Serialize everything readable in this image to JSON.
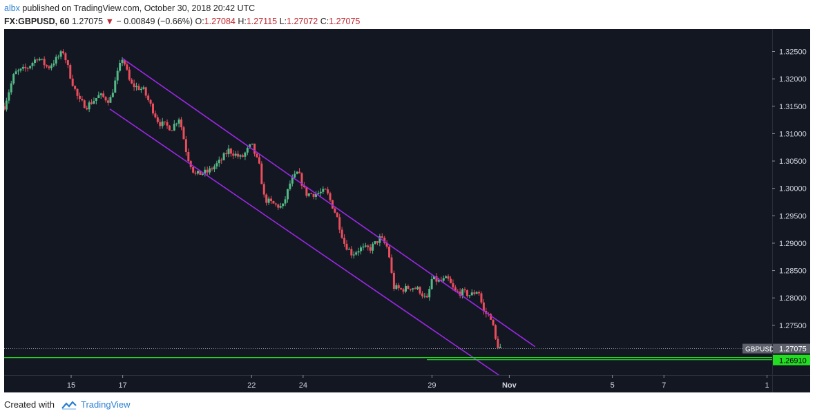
{
  "header": {
    "user": "albx",
    "published_text": "published on TradingView.com, October 30, 2018 20:42 UTC",
    "symbol": "FX:GBPUSD, 60",
    "last": "1.27075",
    "change": "− 0.00849 (−0.66%)",
    "o_label": "O:",
    "o_val": "1.27084",
    "h_label": "H:",
    "h_val": "1.27115",
    "l_label": "L:",
    "l_val": "1.27072",
    "c_label": "C:",
    "c_val": "1.27075"
  },
  "footer": {
    "created_with": "Created with",
    "brand": "TradingView"
  },
  "colors": {
    "background": "#131722",
    "up": "#53b987",
    "down": "#eb4d5c",
    "channel": "#9c27e6",
    "support": "#22dd22",
    "header_red": "#c0262d",
    "brand": "#2a7fd4"
  },
  "chart_data": {
    "type": "candlestick",
    "title": "FX:GBPUSD, 60",
    "ylim": [
      1.2659,
      1.3291
    ],
    "y_ticks": [
      "1.32500",
      "1.32000",
      "1.31500",
      "1.31000",
      "1.30500",
      "1.30000",
      "1.29500",
      "1.29000",
      "1.28500",
      "1.28000",
      "1.27500"
    ],
    "y_tick_values": [
      1.325,
      1.32,
      1.315,
      1.31,
      1.305,
      1.3,
      1.295,
      1.29,
      1.285,
      1.28,
      1.275
    ],
    "x_ticks": [
      "15",
      "17",
      "22",
      "24",
      "29",
      "Nov",
      "5",
      "7",
      "1"
    ],
    "x_tick_days": [
      15,
      17,
      22,
      24,
      29,
      32,
      36,
      38,
      42
    ],
    "x_day_range": [
      12.4,
      42.2
    ],
    "price_path": [
      [
        12.4,
        1.315
      ],
      [
        12.8,
        1.321
      ],
      [
        13.3,
        1.322
      ],
      [
        13.7,
        1.324
      ],
      [
        14.1,
        1.322
      ],
      [
        14.4,
        1.3235
      ],
      [
        14.7,
        1.325
      ],
      [
        15.0,
        1.32
      ],
      [
        15.3,
        1.316
      ],
      [
        15.6,
        1.315
      ],
      [
        16.1,
        1.317
      ],
      [
        16.5,
        1.316
      ],
      [
        16.8,
        1.321
      ],
      [
        17.0,
        1.324
      ],
      [
        17.3,
        1.319
      ],
      [
        17.8,
        1.318
      ],
      [
        18.1,
        1.315
      ],
      [
        18.4,
        1.312
      ],
      [
        18.9,
        1.311
      ],
      [
        19.2,
        1.313
      ],
      [
        19.5,
        1.306
      ],
      [
        19.8,
        1.3025
      ],
      [
        20.3,
        1.303
      ],
      [
        20.8,
        1.305
      ],
      [
        21.1,
        1.307
      ],
      [
        21.6,
        1.3055
      ],
      [
        22.0,
        1.308
      ],
      [
        22.3,
        1.304
      ],
      [
        22.5,
        1.298
      ],
      [
        22.9,
        1.297
      ],
      [
        23.2,
        1.2965
      ],
      [
        23.5,
        1.301
      ],
      [
        23.8,
        1.303
      ],
      [
        24.1,
        1.299
      ],
      [
        24.5,
        1.299
      ],
      [
        24.9,
        1.2995
      ],
      [
        25.3,
        1.295
      ],
      [
        25.6,
        1.29
      ],
      [
        25.9,
        1.288
      ],
      [
        26.2,
        1.289
      ],
      [
        26.6,
        1.289
      ],
      [
        27.0,
        1.291
      ],
      [
        27.3,
        1.289
      ],
      [
        27.5,
        1.282
      ],
      [
        27.8,
        1.2815
      ],
      [
        28.2,
        1.282
      ],
      [
        28.5,
        1.2815
      ],
      [
        28.8,
        1.2795
      ],
      [
        29.0,
        1.2835
      ],
      [
        29.3,
        1.283
      ],
      [
        29.6,
        1.2835
      ],
      [
        29.9,
        1.281
      ],
      [
        30.2,
        1.281
      ],
      [
        30.5,
        1.2805
      ],
      [
        30.8,
        1.2815
      ],
      [
        31.0,
        1.2775
      ],
      [
        31.3,
        1.2765
      ],
      [
        31.5,
        1.2715
      ],
      [
        31.7,
        1.27075
      ]
    ],
    "channel_upper": [
      [
        17.0,
        1.3237
      ],
      [
        33.0,
        1.2711
      ]
    ],
    "channel_lower": [
      [
        16.5,
        1.3145
      ],
      [
        31.6,
        1.2659
      ]
    ],
    "support_line": 1.2691,
    "support_segment_start_day": 28.8,
    "labels": {
      "symbol_tag": "GBPUSD",
      "last_price": "1.27075",
      "support_price": "1.26910"
    }
  }
}
